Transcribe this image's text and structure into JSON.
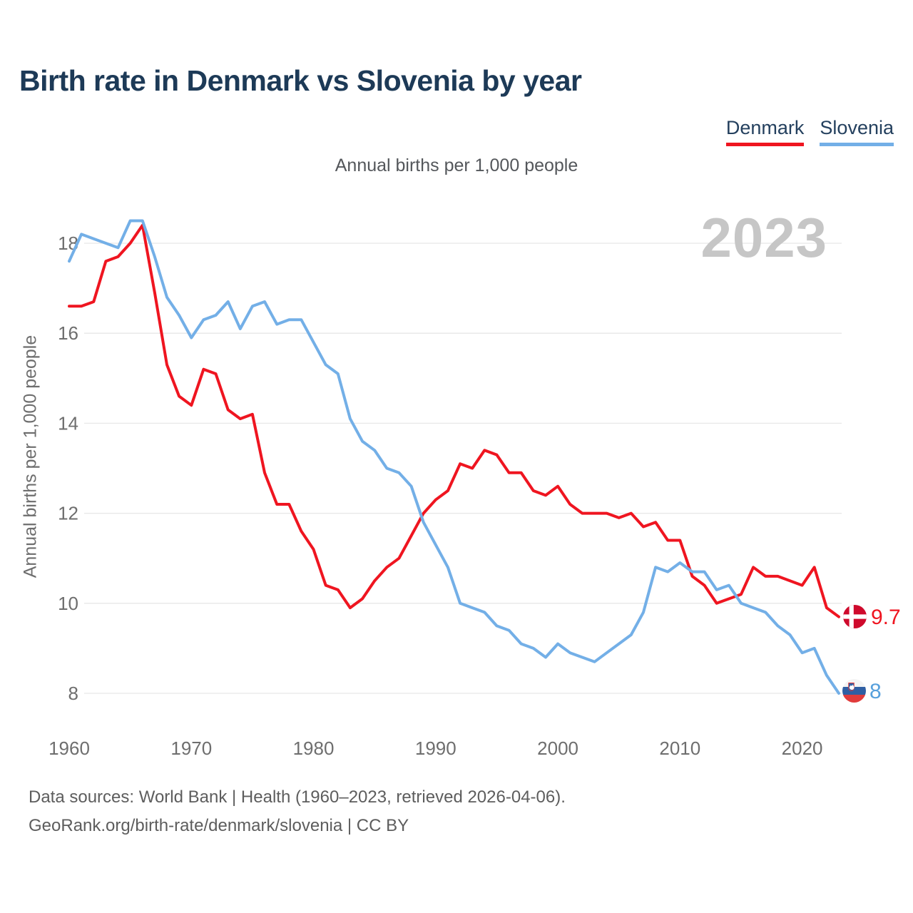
{
  "title": "Birth rate in Denmark vs Slovenia by year",
  "subtitle": "Annual births per 1,000 people",
  "watermark": "2023",
  "y_axis_label": "Annual births per 1,000 people",
  "legend": [
    {
      "label": "Denmark",
      "color": "#ef1520"
    },
    {
      "label": "Slovenia",
      "color": "#73afe7"
    }
  ],
  "end_labels": [
    {
      "series": "Denmark",
      "text": "9.7",
      "color": "#ef1520",
      "flag": "denmark-flag"
    },
    {
      "series": "Slovenia",
      "text": "8",
      "color": "#57a0dc",
      "flag": "slovenia-flag"
    }
  ],
  "footer": {
    "line1": "Data sources: World Bank | Health (1960–2023, retrieved 2026-04-06).",
    "line2": "GeoRank.org/birth-rate/denmark/slovenia | CC BY"
  },
  "chart_data": {
    "type": "line",
    "title": "Birth rate in Denmark vs Slovenia by year",
    "ylabel": "Annual births per 1,000 people",
    "xlabel": "",
    "grid": "horizontal",
    "legend_position": "top-right",
    "ylim": [
      7.5,
      19
    ],
    "xlim": [
      1960,
      2023
    ],
    "yticks": [
      8,
      10,
      12,
      14,
      16,
      18
    ],
    "xticks": [
      1960,
      1970,
      1980,
      1990,
      2000,
      2010,
      2020
    ],
    "x": [
      1960,
      1961,
      1962,
      1963,
      1964,
      1965,
      1966,
      1967,
      1968,
      1969,
      1970,
      1971,
      1972,
      1973,
      1974,
      1975,
      1976,
      1977,
      1978,
      1979,
      1980,
      1981,
      1982,
      1983,
      1984,
      1985,
      1986,
      1987,
      1988,
      1989,
      1990,
      1991,
      1992,
      1993,
      1994,
      1995,
      1996,
      1997,
      1998,
      1999,
      2000,
      2001,
      2002,
      2003,
      2004,
      2005,
      2006,
      2007,
      2008,
      2009,
      2010,
      2011,
      2012,
      2013,
      2014,
      2015,
      2016,
      2017,
      2018,
      2019,
      2020,
      2021,
      2022,
      2023
    ],
    "series": [
      {
        "name": "Denmark",
        "color": "#ef1520",
        "end_value": 9.7,
        "values": [
          16.6,
          16.6,
          16.7,
          17.6,
          17.7,
          18.0,
          18.4,
          16.9,
          15.3,
          14.6,
          14.4,
          15.2,
          15.1,
          14.3,
          14.1,
          14.2,
          12.9,
          12.2,
          12.2,
          11.6,
          11.2,
          10.4,
          10.3,
          9.9,
          10.1,
          10.5,
          10.8,
          11.0,
          11.5,
          12.0,
          12.3,
          12.5,
          13.1,
          13.0,
          13.4,
          13.3,
          12.9,
          12.9,
          12.5,
          12.4,
          12.6,
          12.2,
          12.0,
          12.0,
          12.0,
          11.9,
          12.0,
          11.7,
          11.8,
          11.4,
          11.4,
          10.6,
          10.4,
          10.0,
          10.1,
          10.2,
          10.8,
          10.6,
          10.6,
          10.5,
          10.4,
          10.8,
          9.9,
          9.7
        ]
      },
      {
        "name": "Slovenia",
        "color": "#73afe7",
        "end_value": 8,
        "values": [
          17.6,
          18.2,
          18.1,
          18.0,
          17.9,
          18.5,
          18.5,
          17.7,
          16.8,
          16.4,
          15.9,
          16.3,
          16.4,
          16.7,
          16.1,
          16.6,
          16.7,
          16.2,
          16.3,
          16.3,
          15.8,
          15.3,
          15.1,
          14.1,
          13.6,
          13.4,
          13.0,
          12.9,
          12.6,
          11.8,
          11.3,
          10.8,
          10.0,
          9.9,
          9.8,
          9.5,
          9.4,
          9.1,
          9.0,
          8.8,
          9.1,
          8.9,
          8.8,
          8.7,
          8.9,
          9.1,
          9.3,
          9.8,
          10.8,
          10.7,
          10.9,
          10.7,
          10.7,
          10.3,
          10.4,
          10.0,
          9.9,
          9.8,
          9.5,
          9.3,
          8.9,
          9.0,
          8.4,
          8.0
        ]
      }
    ]
  }
}
